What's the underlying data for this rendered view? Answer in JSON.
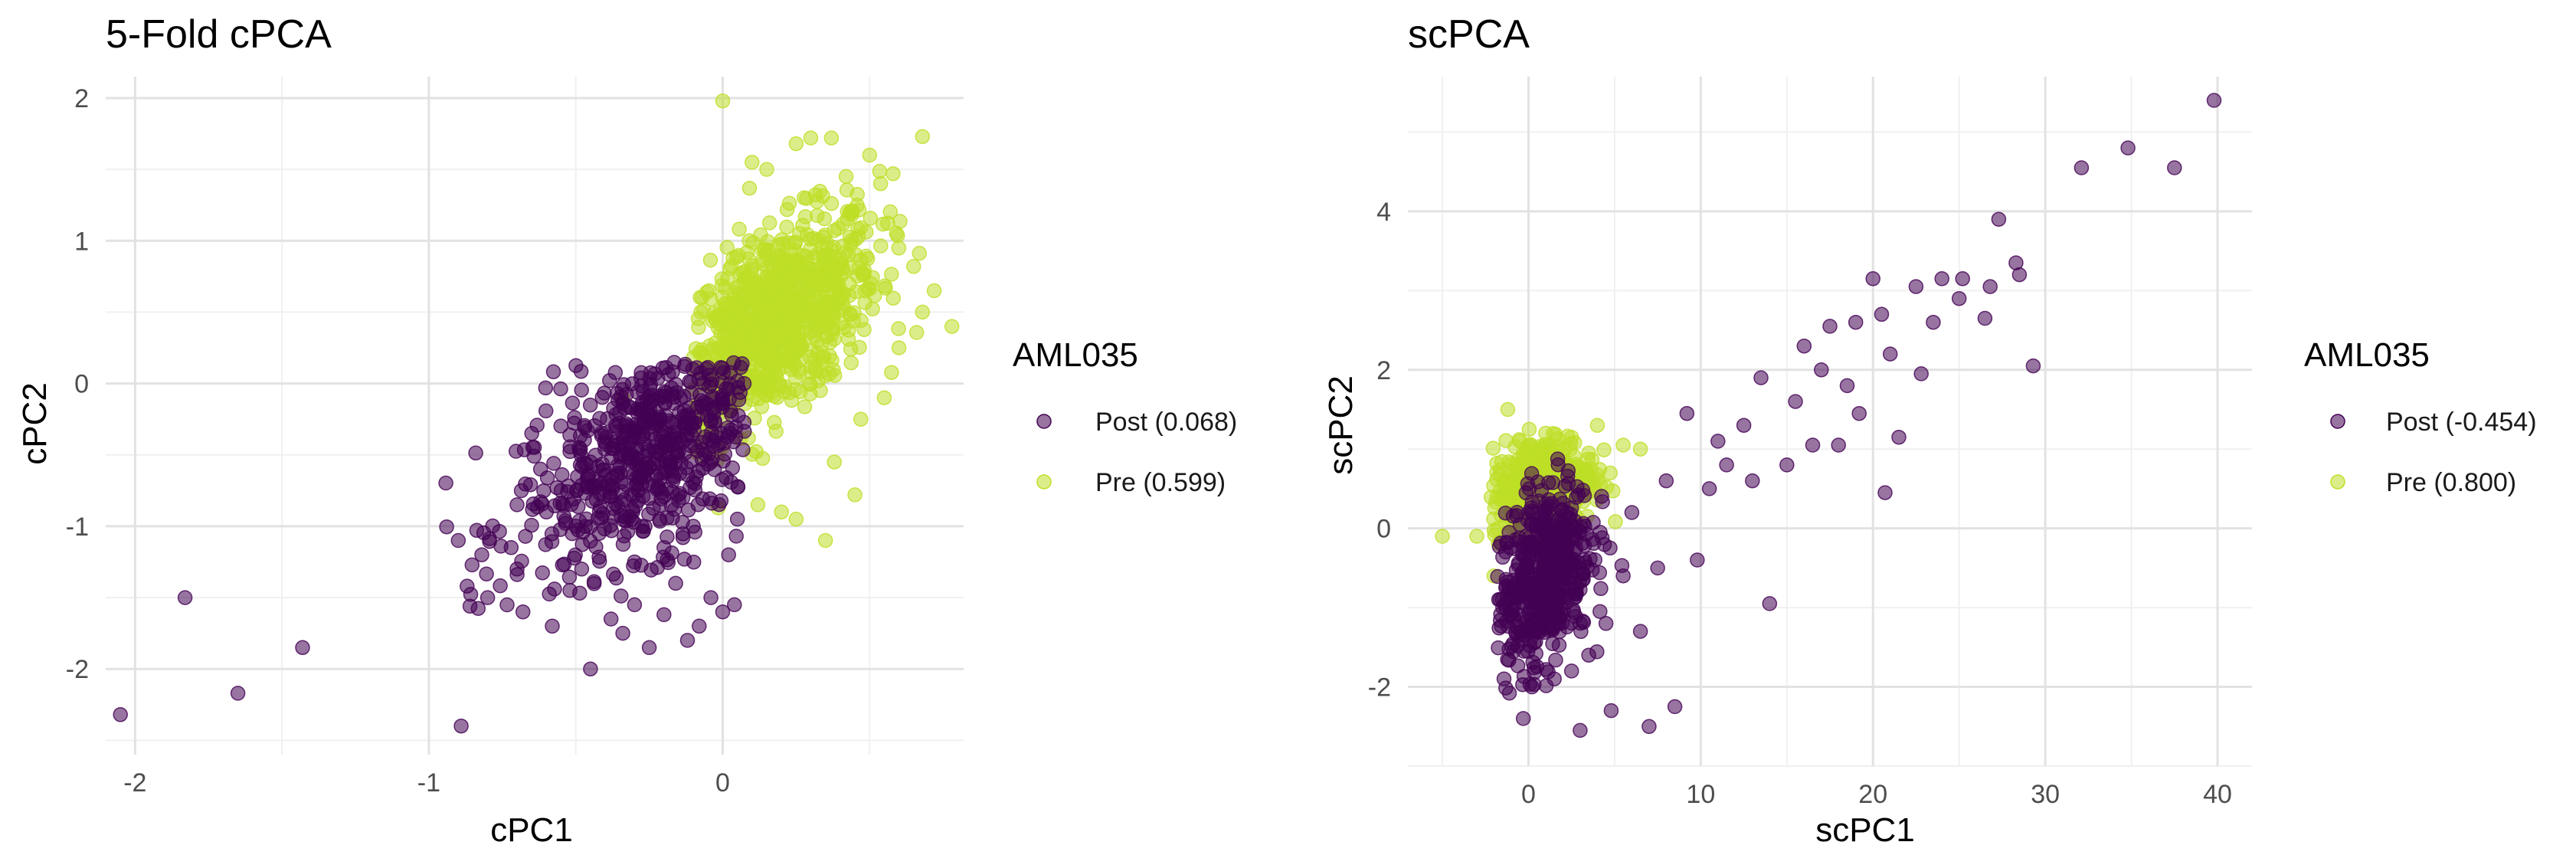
{
  "chart_data": [
    {
      "type": "scatter",
      "title": "5-Fold cPCA",
      "xlabel": "cPC1",
      "ylabel": "cPC2",
      "xlim": [
        -2.1,
        0.82
      ],
      "ylim": [
        -2.6,
        2.15
      ],
      "xticks": [
        -2,
        -1,
        0
      ],
      "yticks": [
        2,
        1,
        0,
        -1,
        -2
      ],
      "grid": true,
      "legend": {
        "title": "AML035",
        "position": "right"
      },
      "series": [
        {
          "name": "Post (0.068)",
          "color": "#440154",
          "points": [
            [
              -2.05,
              -2.32
            ],
            [
              -1.83,
              -1.5
            ],
            [
              -1.65,
              -2.17
            ],
            [
              -1.43,
              -1.85
            ],
            [
              -0.89,
              -2.4
            ],
            [
              -0.9,
              -1.1
            ],
            [
              -0.87,
              -1.42
            ],
            [
              -0.86,
              -1.56
            ],
            [
              -0.82,
              -1.2
            ],
            [
              -0.8,
              -1.5
            ],
            [
              -0.72,
              -1.15
            ],
            [
              -0.7,
              -1.3
            ],
            [
              -0.68,
              -1.6
            ],
            [
              -0.65,
              -0.35
            ],
            [
              -0.6,
              -0.9
            ],
            [
              -0.58,
              -1.7
            ],
            [
              -0.52,
              -1.45
            ],
            [
              -0.48,
              -1.3
            ],
            [
              -0.45,
              -2.0
            ],
            [
              -0.42,
              -1.05
            ],
            [
              -0.38,
              -1.65
            ],
            [
              -0.34,
              -1.75
            ],
            [
              -0.3,
              -1.55
            ],
            [
              -0.25,
              -1.85
            ],
            [
              -0.2,
              -1.62
            ],
            [
              -0.16,
              -1.4
            ],
            [
              -0.12,
              -1.8
            ],
            [
              -0.08,
              -1.7
            ],
            [
              -0.04,
              -1.5
            ],
            [
              0.0,
              -1.6
            ],
            [
              0.04,
              -1.55
            ],
            [
              -0.5,
              -1.0
            ],
            [
              -0.55,
              -0.75
            ],
            [
              -0.45,
              -0.55
            ],
            [
              -0.4,
              -0.35
            ],
            [
              -0.35,
              -0.2
            ],
            [
              -0.62,
              -0.6
            ],
            [
              -0.7,
              -0.85
            ],
            [
              -0.3,
              -1.25
            ],
            [
              -0.2,
              -1.15
            ],
            [
              -0.1,
              -1.0
            ],
            [
              0.02,
              -1.2
            ],
            [
              0.05,
              -0.95
            ]
          ],
          "cluster": {
            "cx": -0.22,
            "cy": -0.45,
            "sx": 0.24,
            "sy": 0.42,
            "rho": 0.55,
            "n": 700,
            "xrange": [
              -0.95,
              0.08
            ],
            "yrange": [
              -1.6,
              0.15
            ]
          }
        },
        {
          "name": "Pre (0.599)",
          "color": "#bddf26",
          "points": [
            [
              0.0,
              1.98
            ],
            [
              0.3,
              1.72
            ],
            [
              0.37,
              1.72
            ],
            [
              0.68,
              1.73
            ],
            [
              0.25,
              1.68
            ],
            [
              0.1,
              1.55
            ],
            [
              0.15,
              1.5
            ],
            [
              0.42,
              1.45
            ],
            [
              0.58,
              1.47
            ],
            [
              0.5,
              1.6
            ],
            [
              0.65,
              0.82
            ],
            [
              0.72,
              0.65
            ],
            [
              0.78,
              0.4
            ],
            [
              0.68,
              0.5
            ],
            [
              0.6,
              0.25
            ],
            [
              0.55,
              -0.1
            ],
            [
              0.47,
              -0.25
            ],
            [
              0.38,
              -0.55
            ],
            [
              0.45,
              -0.78
            ],
            [
              0.35,
              -1.1
            ],
            [
              -0.34,
              -0.1
            ],
            [
              0.2,
              -0.9
            ],
            [
              0.25,
              -0.95
            ],
            [
              0.12,
              -0.85
            ]
          ],
          "cluster": {
            "cx": 0.17,
            "cy": 0.42,
            "sx": 0.18,
            "sy": 0.38,
            "rho": 0.55,
            "n": 900,
            "xrange": [
              -0.1,
              0.72
            ],
            "yrange": [
              -0.9,
              1.55
            ]
          }
        }
      ]
    },
    {
      "type": "scatter",
      "title": "scPCA",
      "xlabel": "scPC1",
      "ylabel": "scPC2",
      "xlim": [
        -7,
        42
      ],
      "ylim": [
        -3.0,
        5.7
      ],
      "xticks": [
        0,
        10,
        20,
        30,
        40
      ],
      "yticks": [
        4,
        2,
        0,
        -2
      ],
      "grid": true,
      "legend": {
        "title": "AML035",
        "position": "right"
      },
      "series": [
        {
          "name": "Post (-0.454)",
          "color": "#440154",
          "points": [
            [
              39.8,
              5.4
            ],
            [
              34.8,
              4.8
            ],
            [
              37.5,
              4.55
            ],
            [
              32.1,
              4.55
            ],
            [
              27.3,
              3.9
            ],
            [
              28.3,
              3.35
            ],
            [
              28.5,
              3.2
            ],
            [
              26.8,
              3.05
            ],
            [
              25.2,
              3.15
            ],
            [
              24.0,
              3.15
            ],
            [
              22.5,
              3.05
            ],
            [
              20.0,
              3.15
            ],
            [
              20.5,
              2.7
            ],
            [
              19.0,
              2.6
            ],
            [
              17.5,
              2.55
            ],
            [
              16.0,
              2.3
            ],
            [
              26.5,
              2.65
            ],
            [
              29.3,
              2.05
            ],
            [
              22.8,
              1.95
            ],
            [
              21.5,
              1.15
            ],
            [
              20.7,
              0.45
            ],
            [
              19.2,
              1.45
            ],
            [
              18.0,
              1.05
            ],
            [
              16.5,
              1.05
            ],
            [
              15.0,
              0.8
            ],
            [
              14.0,
              -0.95
            ],
            [
              13.0,
              0.6
            ],
            [
              11.5,
              0.8
            ],
            [
              9.8,
              -0.4
            ],
            [
              9.2,
              1.45
            ],
            [
              8.5,
              -2.25
            ],
            [
              7.0,
              -2.5
            ],
            [
              4.8,
              -2.3
            ],
            [
              3.0,
              -2.55
            ],
            [
              -0.3,
              -2.4
            ],
            [
              5.5,
              -0.6
            ],
            [
              6.5,
              -1.3
            ],
            [
              7.5,
              -0.5
            ],
            [
              10.5,
              0.5
            ],
            [
              12.5,
              1.3
            ],
            [
              13.5,
              1.9
            ],
            [
              15.5,
              1.6
            ],
            [
              17.0,
              2.0
            ],
            [
              18.5,
              1.8
            ],
            [
              21.0,
              2.2
            ],
            [
              23.5,
              2.6
            ],
            [
              25.0,
              2.9
            ],
            [
              11.0,
              1.1
            ],
            [
              8.0,
              0.6
            ],
            [
              6.0,
              0.2
            ],
            [
              4.5,
              -1.2
            ],
            [
              3.5,
              -1.6
            ],
            [
              2.5,
              -1.8
            ],
            [
              1.5,
              -1.9
            ],
            [
              0.2,
              -2.0
            ]
          ],
          "cluster": {
            "cx": 0.8,
            "cy": -0.6,
            "sx": 1.4,
            "sy": 0.6,
            "rho": 0.35,
            "n": 520,
            "xrange": [
              -1.8,
              9.0
            ],
            "yrange": [
              -2.1,
              0.9
            ]
          }
        },
        {
          "name": "Pre (0.800)",
          "color": "#bddf26",
          "points": [
            [
              -1.2,
              1.5
            ],
            [
              -5.0,
              -0.1
            ],
            [
              -3.0,
              -0.1
            ],
            [
              -2.0,
              -0.6
            ],
            [
              0.0,
              1.05
            ],
            [
              1.0,
              1.2
            ],
            [
              2.5,
              1.15
            ],
            [
              4.0,
              1.3
            ],
            [
              5.5,
              1.05
            ],
            [
              6.5,
              1.0
            ],
            [
              3.5,
              0.95
            ],
            [
              -0.5,
              1.1
            ]
          ],
          "cluster": {
            "cx": 0.8,
            "cy": 0.55,
            "sx": 1.5,
            "sy": 0.3,
            "rho": 0.2,
            "n": 480,
            "xrange": [
              -2.2,
              6.5
            ],
            "yrange": [
              -0.2,
              1.3
            ]
          }
        }
      ]
    }
  ]
}
